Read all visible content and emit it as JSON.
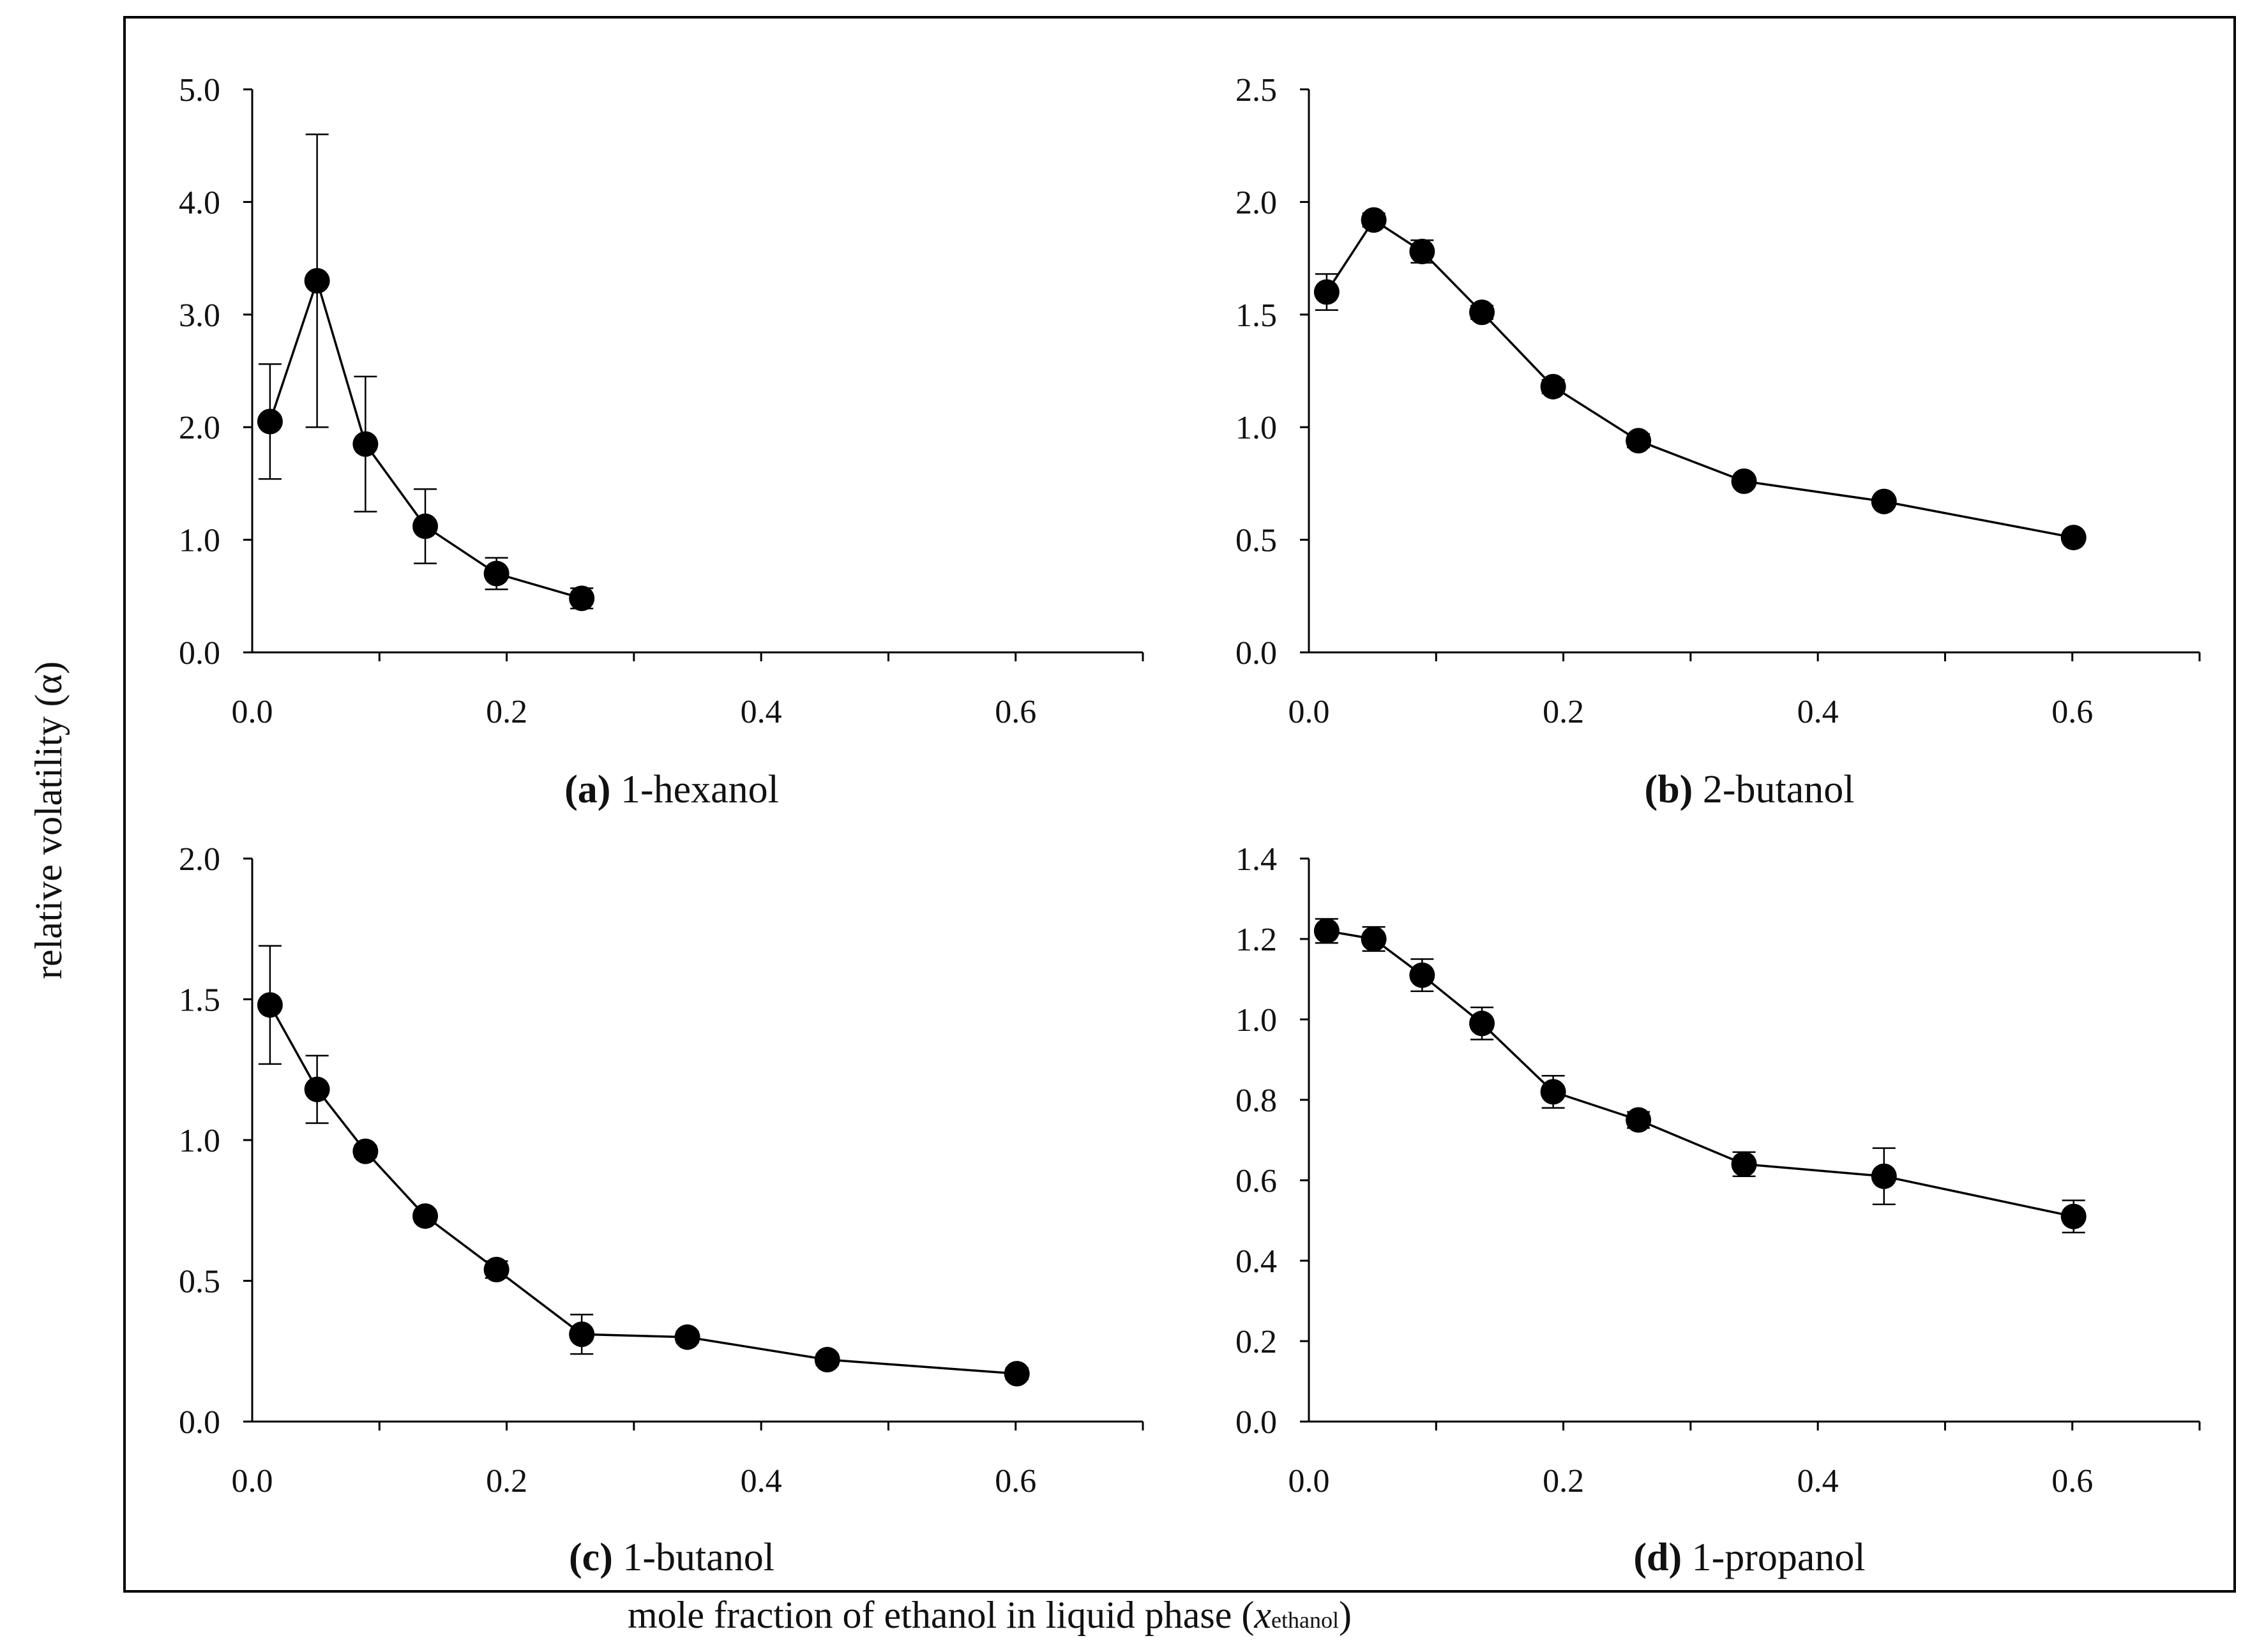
{
  "figure": {
    "ylabel": "relative volatility (α)",
    "xlabel_main": "mole fraction of ethanol in liquid phase (",
    "xlabel_symbol": "x",
    "xlabel_sub": "ethanol",
    "xlabel_close": ")"
  },
  "chart_data": [
    {
      "type": "line",
      "panel_letter": "(a)",
      "title": "1-hexanol",
      "x": [
        0.014,
        0.051,
        0.089,
        0.136,
        0.192,
        0.259
      ],
      "values": [
        2.05,
        3.3,
        1.85,
        1.12,
        0.7,
        0.48
      ],
      "errors": [
        0.51,
        1.3,
        0.6,
        0.33,
        0.14,
        0.09
      ],
      "xlim": [
        0,
        0.7
      ],
      "ylim": [
        0,
        5
      ],
      "xticks": [
        0.0,
        0.2,
        0.4,
        0.6
      ],
      "yticks": [
        0.0,
        1.0,
        2.0,
        3.0,
        4.0,
        5.0
      ],
      "xtick_labels": [
        "0.0",
        "0.2",
        "0.4",
        "0.6"
      ],
      "ytick_labels": [
        "0.0",
        "1.0",
        "2.0",
        "3.0",
        "4.0",
        "5.0"
      ]
    },
    {
      "type": "line",
      "panel_letter": "(b)",
      "title": "2-butanol",
      "x": [
        0.014,
        0.051,
        0.089,
        0.136,
        0.192,
        0.259,
        0.342,
        0.452,
        0.601
      ],
      "values": [
        1.6,
        1.92,
        1.78,
        1.51,
        1.18,
        0.94,
        0.76,
        0.67,
        0.51
      ],
      "errors": [
        0.08,
        0.03,
        0.05,
        0.03,
        0.03,
        0.03,
        0.02,
        0.02,
        0.02
      ],
      "xlim": [
        0,
        0.7
      ],
      "ylim": [
        0,
        2.5
      ],
      "xticks": [
        0.0,
        0.2,
        0.4,
        0.6
      ],
      "yticks": [
        0.0,
        0.5,
        1.0,
        1.5,
        2.0,
        2.5
      ],
      "xtick_labels": [
        "0.0",
        "0.2",
        "0.4",
        "0.6"
      ],
      "ytick_labels": [
        "0.0",
        "0.5",
        "1.0",
        "1.5",
        "2.0",
        "2.5"
      ]
    },
    {
      "type": "line",
      "panel_letter": "(c)",
      "title": "1-butanol",
      "x": [
        0.014,
        0.051,
        0.089,
        0.136,
        0.192,
        0.259,
        0.342,
        0.452,
        0.601
      ],
      "values": [
        1.48,
        1.18,
        0.96,
        0.73,
        0.54,
        0.31,
        0.3,
        0.22,
        0.17
      ],
      "errors": [
        0.21,
        0.12,
        0.02,
        0.02,
        0.03,
        0.07,
        0.02,
        0.02,
        0.02
      ],
      "xlim": [
        0,
        0.7
      ],
      "ylim": [
        0,
        2
      ],
      "xticks": [
        0.0,
        0.2,
        0.4,
        0.6
      ],
      "yticks": [
        0.0,
        0.5,
        1.0,
        1.5,
        2.0
      ],
      "xtick_labels": [
        "0.0",
        "0.2",
        "0.4",
        "0.6"
      ],
      "ytick_labels": [
        "0.0",
        "0.5",
        "1.0",
        "1.5",
        "2.0"
      ]
    },
    {
      "type": "line",
      "panel_letter": "(d)",
      "title": "1-propanol",
      "x": [
        0.014,
        0.051,
        0.089,
        0.136,
        0.192,
        0.259,
        0.342,
        0.452,
        0.601
      ],
      "values": [
        1.22,
        1.2,
        1.11,
        0.99,
        0.82,
        0.75,
        0.64,
        0.61,
        0.51
      ],
      "errors": [
        0.03,
        0.03,
        0.04,
        0.04,
        0.04,
        0.02,
        0.03,
        0.07,
        0.04
      ],
      "xlim": [
        0,
        0.7
      ],
      "ylim": [
        0,
        1.4
      ],
      "xticks": [
        0.0,
        0.2,
        0.4,
        0.6
      ],
      "yticks": [
        0.0,
        0.2,
        0.4,
        0.6,
        0.8,
        1.0,
        1.2,
        1.4
      ],
      "xtick_labels": [
        "0.0",
        "0.2",
        "0.4",
        "0.6"
      ],
      "ytick_labels": [
        "0.0",
        "0.2",
        "0.4",
        "0.6",
        "0.8",
        "1.0",
        "1.2",
        "1.4"
      ]
    }
  ]
}
